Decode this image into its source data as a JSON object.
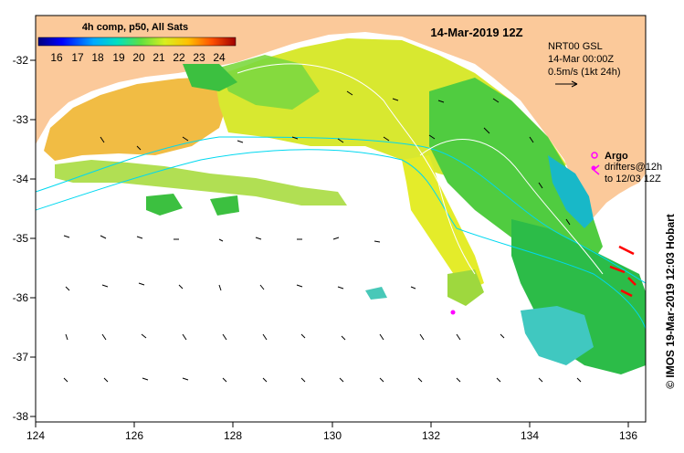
{
  "map": {
    "title": "14-Mar-2019 12Z",
    "colorbar": {
      "title": "4h comp, p50, All Sats",
      "ticks": [
        "16",
        "17",
        "18",
        "19",
        "20",
        "21",
        "22",
        "23",
        "24"
      ],
      "min": 15,
      "max": 25
    },
    "current_legend": {
      "line1": "NRT00 GSL",
      "line2": "14-Mar 00:00Z",
      "line3": "0.5m/s (1kt 24h)"
    },
    "argo_legend": {
      "argo_label": "Argo",
      "drifter_line1": "drifters@12h",
      "drifter_line2": "to 12/03 12Z"
    },
    "credit": "© IMOS 19-Mar-2019 12:03 Hobart",
    "axes": {
      "x_ticks": [
        "124",
        "126",
        "128",
        "130",
        "132",
        "134",
        "136"
      ],
      "y_ticks": [
        "-32",
        "-33",
        "-34",
        "-35",
        "-36",
        "-37",
        "-38"
      ]
    },
    "colors": {
      "land": "#fbc99a",
      "no_data": "#ffffff",
      "argo": "#ff00ff",
      "drifter": "#ff0000",
      "contour": "#00d8f0"
    }
  }
}
